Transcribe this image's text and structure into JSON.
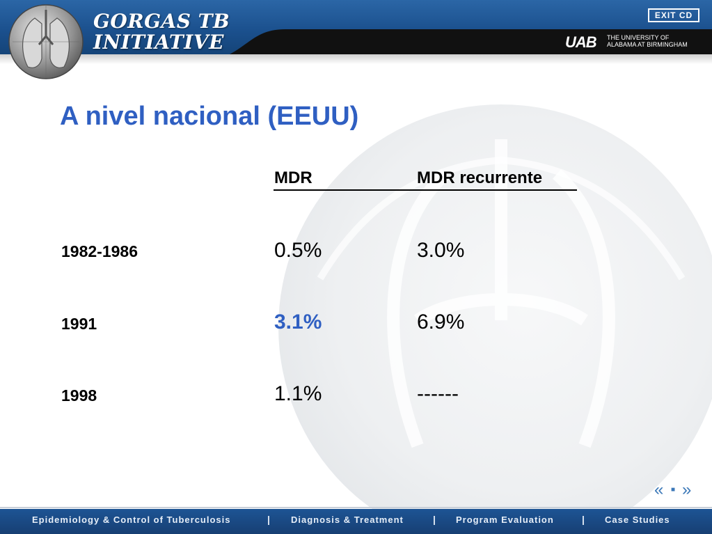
{
  "header": {
    "logo_text_line1": "GORGAS TB",
    "logo_text_line2": "INITIATIVE",
    "exit_label": "EXIT CD",
    "uab_mark": "UAB",
    "uab_name_line1": "THE UNIVERSITY OF",
    "uab_name_line2": "ALABAMA AT BIRMINGHAM"
  },
  "slide": {
    "title": "A nivel nacional (EEUU)",
    "table": {
      "headers": [
        "MDR",
        "MDR recurrente"
      ],
      "rows": [
        {
          "year": "1982-1986",
          "mdr": "0.5%",
          "recurrent": "3.0%"
        },
        {
          "year": "1991",
          "mdr": "3.1%",
          "recurrent": "6.9%"
        },
        {
          "year": "1998",
          "mdr": "1.1%",
          "recurrent": "------"
        }
      ]
    }
  },
  "nav": {
    "prev": "«",
    "home": "■",
    "next": "»"
  },
  "footer": {
    "items": [
      "Epidemiology & Control of Tuberculosis",
      "Diagnosis & Treatment",
      "Program Evaluation",
      "Case Studies"
    ],
    "separator": "|"
  },
  "colors": {
    "header_blue": "#1a4f8c",
    "title_blue": "#2f5fc2",
    "footer_blue": "#1d5494"
  }
}
